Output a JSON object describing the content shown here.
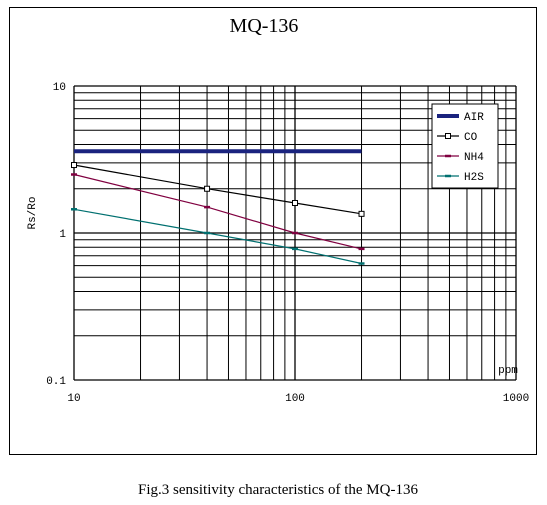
{
  "chart_data": {
    "type": "line",
    "title": "MQ-136",
    "xlabel": "ppm",
    "ylabel": "Rs/Ro",
    "xscale": "log",
    "yscale": "log",
    "xlim": [
      10,
      1000
    ],
    "ylim": [
      0.1,
      10
    ],
    "x_ticks": [
      "10",
      "100",
      "1000"
    ],
    "y_ticks": [
      "10",
      "1",
      "0.1"
    ],
    "grid": true,
    "legend_position": "top-right",
    "series": [
      {
        "name": "AIR",
        "color": "#1a237e",
        "marker": "none",
        "points": [
          [
            10,
            3.6
          ],
          [
            200,
            3.6
          ]
        ]
      },
      {
        "name": "CO",
        "color": "#000000",
        "marker": "square",
        "points": [
          [
            10,
            2.9
          ],
          [
            40,
            2.0
          ],
          [
            100,
            1.6
          ],
          [
            200,
            1.35
          ]
        ]
      },
      {
        "name": "NH4",
        "color": "#800040",
        "marker": "dash",
        "points": [
          [
            10,
            2.5
          ],
          [
            40,
            1.5
          ],
          [
            100,
            1.0
          ],
          [
            200,
            0.78
          ]
        ]
      },
      {
        "name": "H2S",
        "color": "#007070",
        "marker": "dash",
        "points": [
          [
            10,
            1.45
          ],
          [
            40,
            1.0
          ],
          [
            100,
            0.78
          ],
          [
            200,
            0.62
          ]
        ]
      }
    ],
    "caption": "Fig.3 sensitivity characteristics of the MQ-136"
  }
}
